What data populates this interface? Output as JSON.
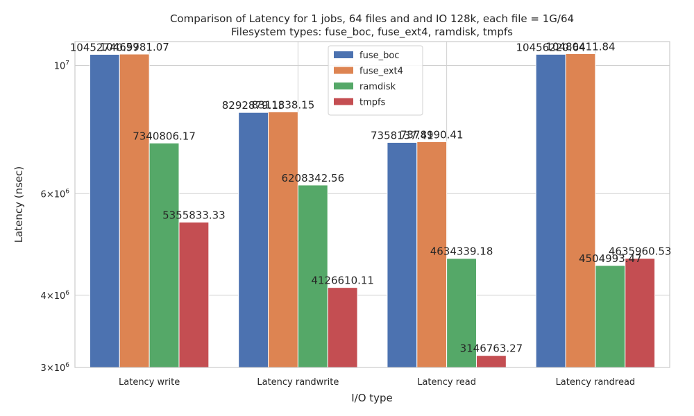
{
  "chart_data": {
    "type": "bar",
    "title": "Comparison of Latency for 1 jobs, 64 files and  and IO 128k, each file = 1G/64",
    "subtitle": "Filesystem types: fuse_boc, fuse_ext4, ramdisk, tmpfs",
    "xlabel": "I/O type",
    "ylabel": "Latency (nsec)",
    "yscale": "log",
    "ylim": [
      3000000,
      11000000
    ],
    "yticks": [
      {
        "value": 3000000,
        "base": "3×10",
        "exp": "6"
      },
      {
        "value": 4000000,
        "base": "4×10",
        "exp": "6"
      },
      {
        "value": 6000000,
        "base": "6×10",
        "exp": "6"
      },
      {
        "value": 10000000,
        "base": "10",
        "exp": "7"
      }
    ],
    "grid": true,
    "legend_position": "top-center",
    "categories": [
      "Latency write",
      "Latency randwrite",
      "Latency read",
      "Latency randread"
    ],
    "series": [
      {
        "name": "fuse_boc",
        "color": "#4c72b0",
        "values": [
          10452740.97,
          8292879.15,
          7358137.41,
          10456220.64
        ],
        "labels": [
          "10452740.97",
          "8292879.15",
          "7358137.41",
          "10456220.64"
        ]
      },
      {
        "name": "fuse_ext4",
        "color": "#dd8452",
        "values": [
          10465981.07,
          8311838.15,
          7378990.41,
          10480411.84
        ],
        "labels": [
          "10465981.07",
          "8311838.15",
          "7378990.41",
          "10480411.84"
        ]
      },
      {
        "name": "ramdisk",
        "color": "#55a868",
        "values": [
          7340806.17,
          6208342.56,
          4634339.18,
          4504993.47
        ],
        "labels": [
          "7340806.17",
          "6208342.56",
          "4634339.18",
          "4504993.47"
        ]
      },
      {
        "name": "tmpfs",
        "color": "#c44e52",
        "values": [
          5355833.33,
          4126610.11,
          3146763.27,
          4635960.53
        ],
        "labels": [
          "5355833.33",
          "4126610.11",
          "3146763.27",
          "4635960.53"
        ]
      }
    ]
  }
}
